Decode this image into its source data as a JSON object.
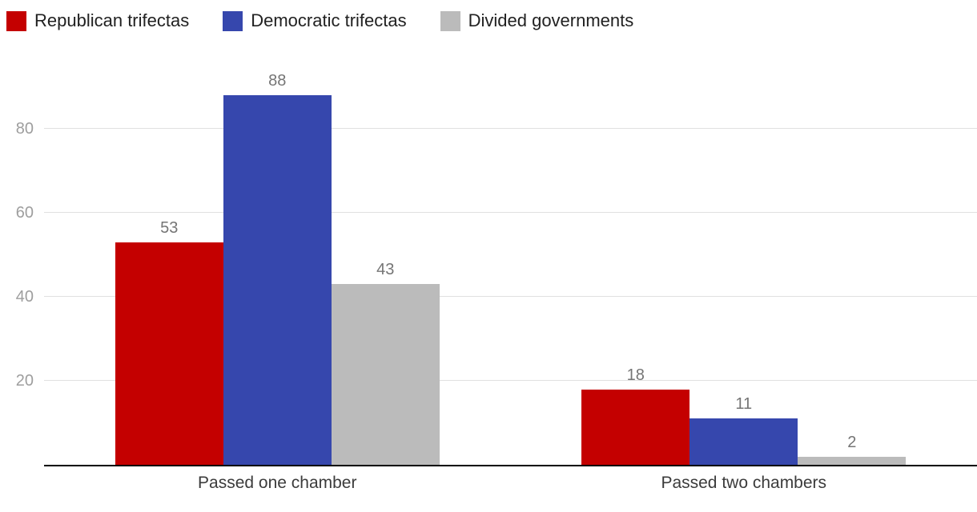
{
  "chart_data": {
    "type": "bar",
    "title": "",
    "categories": [
      "Passed one chamber",
      "Passed two chambers"
    ],
    "series": [
      {
        "name": "Republican trifectas",
        "color": "#c40000",
        "values": [
          53,
          18
        ]
      },
      {
        "name": "Democratic trifectas",
        "color": "#3647ad",
        "values": [
          88,
          11
        ]
      },
      {
        "name": "Divided governments",
        "color": "#bbbbbb",
        "values": [
          43,
          2
        ]
      }
    ],
    "yticks": [
      20,
      40,
      60,
      80
    ],
    "ylim": [
      0,
      100
    ],
    "xlabel": "",
    "ylabel": "",
    "grid": true,
    "value_labels": true,
    "legend_position": "top-left"
  },
  "colors": {
    "background": "#ffffff",
    "axis_line": "#000000",
    "gridline": "#e0e0e0",
    "tick_label": "#9e9e9e",
    "value_label": "#757575",
    "category_label": "#3b3b3b",
    "legend_label": "#212121"
  }
}
